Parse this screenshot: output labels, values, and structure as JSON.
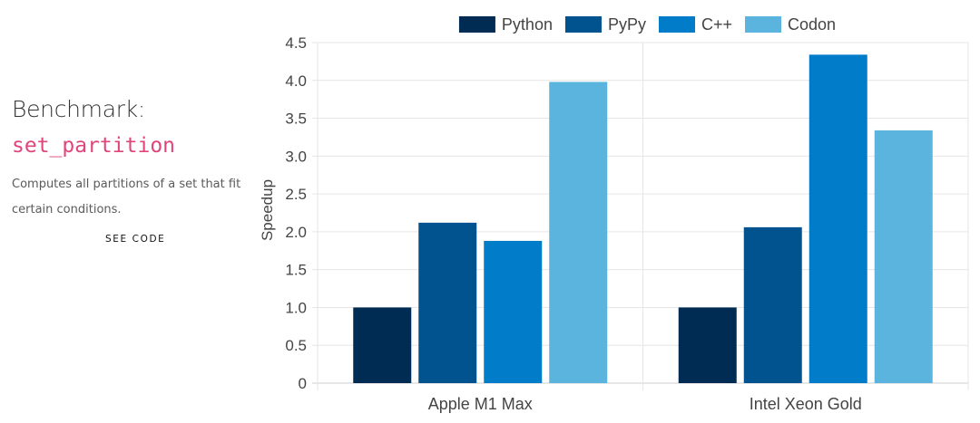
{
  "benchmark": {
    "heading": "Benchmark:",
    "name": "set_partition",
    "description": "Computes all partitions of a set that fit certain conditions.",
    "see_code_label": "SEE CODE"
  },
  "chart_data": {
    "type": "bar",
    "categories": [
      "Apple M1 Max",
      "Intel Xeon Gold"
    ],
    "series": [
      {
        "name": "Python",
        "color": "#002b52",
        "values": [
          1.0,
          1.0
        ]
      },
      {
        "name": "PyPy",
        "color": "#00538f",
        "values": [
          2.12,
          2.06
        ]
      },
      {
        "name": "C++",
        "color": "#007cc9",
        "values": [
          1.88,
          4.34
        ]
      },
      {
        "name": "Codon",
        "color": "#5ab4de",
        "values": [
          3.98,
          3.34
        ]
      }
    ],
    "ylabel": "Speedup",
    "xlabel": "",
    "ylim": [
      0,
      4.5
    ],
    "yticks": [
      "0",
      "0.5",
      "1.0",
      "1.5",
      "2.0",
      "2.5",
      "3.0",
      "3.5",
      "4.0",
      "4.5"
    ],
    "grid": true,
    "legend_position": "top"
  }
}
